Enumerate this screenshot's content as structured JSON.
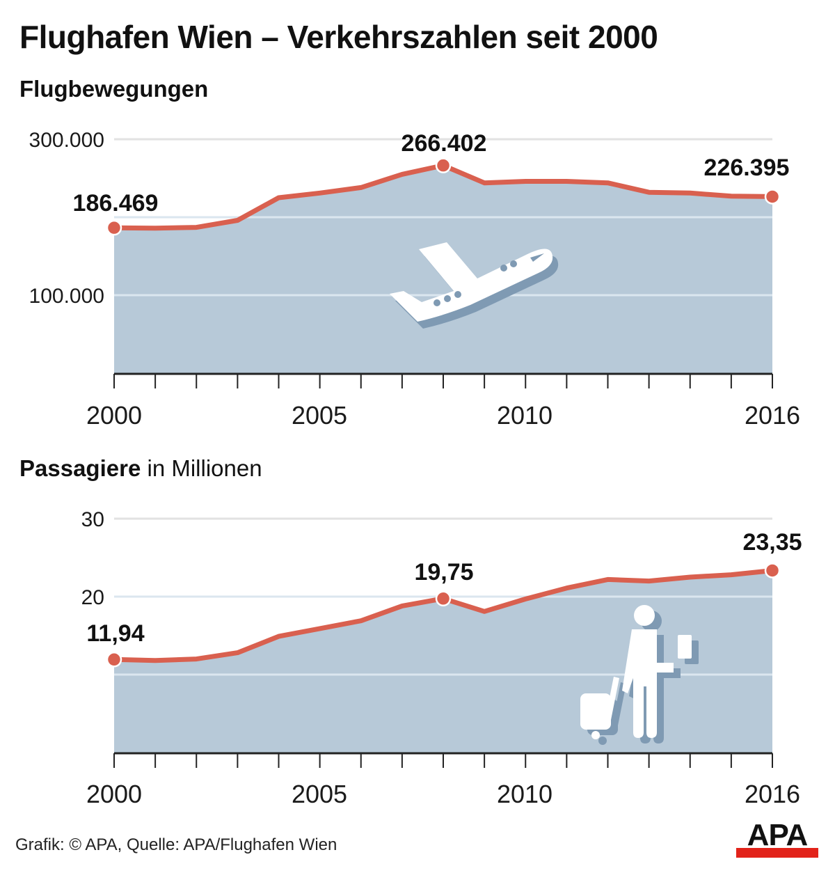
{
  "title": "Flughafen Wien – Verkehrszahlen seit 2000",
  "footer": {
    "credit": "Grafik: © APA, Quelle: APA/Flughafen Wien",
    "logo": "APA"
  },
  "colors": {
    "fill": "#b7c9d8",
    "line": "#d9604f",
    "grid_inside": "#dbe6ef",
    "grid_outside": "#e2e2e2",
    "axis": "#222222",
    "logo_red": "#e2231a",
    "icon_shadow": "#7f9ab3"
  },
  "charts": {
    "movements": {
      "subtitle_bold": "Flugbewegungen",
      "subtitle_light": "",
      "y_labels": [
        "300.000",
        "100.000"
      ],
      "x_labels": [
        "2000",
        "2005",
        "2010",
        "2016"
      ],
      "annotations": [
        "186.469",
        "266.402",
        "226.395"
      ],
      "icon": "airplane-icon"
    },
    "passengers": {
      "subtitle_bold": "Passagiere",
      "subtitle_light": " in Millionen",
      "y_labels": [
        "30",
        "20"
      ],
      "x_labels": [
        "2000",
        "2005",
        "2010",
        "2016"
      ],
      "annotations": [
        "11,94",
        "19,75",
        "23,35"
      ],
      "icon": "traveler-with-suitcase-icon"
    }
  },
  "chart_data": [
    {
      "type": "area",
      "title": "Flughafen Wien – Verkehrszahlen seit 2000",
      "subtitle": "Flugbewegungen",
      "xlabel": "",
      "ylabel": "",
      "x": [
        2000,
        2001,
        2002,
        2003,
        2004,
        2005,
        2006,
        2007,
        2008,
        2009,
        2010,
        2011,
        2012,
        2013,
        2014,
        2015,
        2016
      ],
      "values": [
        186469,
        186000,
        187000,
        196000,
        225000,
        231000,
        238000,
        255000,
        266402,
        244000,
        246000,
        246000,
        244000,
        232000,
        231000,
        227000,
        226395
      ],
      "ylim": [
        0,
        300000
      ],
      "yticks": [
        100000,
        200000,
        300000
      ],
      "ytick_labels": [
        "100.000",
        "",
        "300.000"
      ],
      "xtick_labels": [
        "2000",
        "2005",
        "2010",
        "2016"
      ],
      "annotations": [
        {
          "x": 2000,
          "label": "186.469"
        },
        {
          "x": 2008,
          "label": "266.402"
        },
        {
          "x": 2016,
          "label": "226.395"
        }
      ],
      "grid": true,
      "legend": null
    },
    {
      "type": "area",
      "subtitle": "Passagiere in Millionen",
      "xlabel": "",
      "ylabel": "Millionen",
      "x": [
        2000,
        2001,
        2002,
        2003,
        2004,
        2005,
        2006,
        2007,
        2008,
        2009,
        2010,
        2011,
        2012,
        2013,
        2014,
        2015,
        2016
      ],
      "values": [
        11.94,
        11.8,
        12.0,
        12.8,
        14.9,
        15.9,
        16.9,
        18.8,
        19.75,
        18.1,
        19.7,
        21.1,
        22.2,
        22.0,
        22.5,
        22.8,
        23.35
      ],
      "ylim": [
        0,
        30
      ],
      "yticks": [
        10,
        20,
        30
      ],
      "ytick_labels": [
        "",
        "20",
        "30"
      ],
      "xtick_labels": [
        "2000",
        "2005",
        "2010",
        "2016"
      ],
      "annotations": [
        {
          "x": 2000,
          "label": "11,94"
        },
        {
          "x": 2008,
          "label": "19,75"
        },
        {
          "x": 2016,
          "label": "23,35"
        }
      ],
      "grid": true,
      "legend": null
    }
  ]
}
